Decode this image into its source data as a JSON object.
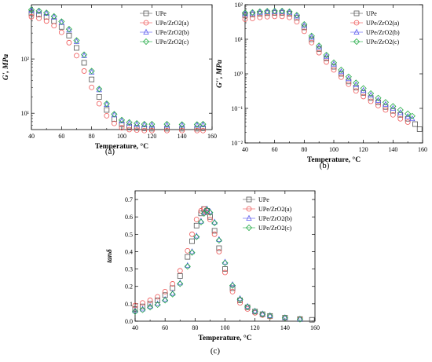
{
  "series_colors": [
    "#555555",
    "#ee5555",
    "#5555ee",
    "#22aa44"
  ],
  "chart_data": [
    {
      "type": "scatter",
      "panel_label": "(a)",
      "xlabel": "Temperature, °C",
      "ylabel": "G', MPa",
      "xlim": [
        40,
        160
      ],
      "ylim": [
        5,
        1000
      ],
      "yscale": "log",
      "grid": false,
      "legend_position": "top-right",
      "xticks": [
        "40",
        "60",
        "80",
        "100",
        "120",
        "140",
        "160"
      ],
      "yticks": [
        {
          "v": 10,
          "label": "10¹"
        },
        {
          "v": 100,
          "label": "10²"
        }
      ],
      "series": [
        {
          "name": "UPe",
          "x": [
            40,
            45,
            50,
            55,
            60,
            65,
            70,
            75,
            80,
            85,
            90,
            95,
            100,
            105,
            110,
            115,
            120,
            130,
            140,
            150,
            154
          ],
          "y": [
            700,
            660,
            600,
            500,
            390,
            270,
            160,
            85,
            42,
            20,
            11.5,
            7.8,
            6.3,
            5.7,
            5.4,
            5.3,
            5.2,
            5.2,
            5.2,
            5.2,
            5.3
          ]
        },
        {
          "name": "UPe/ZrO2(a)",
          "x": [
            40,
            45,
            50,
            55,
            60,
            65,
            70,
            75,
            80,
            85,
            90,
            95,
            100,
            105,
            110,
            115,
            120,
            130,
            140,
            150,
            154
          ],
          "y": [
            600,
            560,
            500,
            410,
            310,
            200,
            115,
            60,
            30,
            15,
            9,
            6.5,
            5.4,
            5.0,
            4.9,
            4.8,
            4.8,
            4.8,
            4.8,
            4.8,
            4.8
          ]
        },
        {
          "name": "UPe/ZrO2(b)",
          "x": [
            40,
            45,
            50,
            55,
            60,
            65,
            70,
            75,
            80,
            85,
            90,
            95,
            100,
            105,
            110,
            115,
            120,
            130,
            140,
            150,
            154
          ],
          "y": [
            790,
            750,
            690,
            590,
            470,
            340,
            210,
            115,
            57,
            27,
            14.5,
            9.3,
            7.2,
            6.5,
            6.2,
            6.1,
            6.0,
            6.0,
            6.0,
            6.0,
            6.1
          ]
        },
        {
          "name": "UPe/ZrO2(c)",
          "x": [
            40,
            45,
            50,
            55,
            60,
            65,
            70,
            75,
            80,
            85,
            90,
            95,
            100,
            105,
            110,
            115,
            120,
            130,
            140,
            150,
            154
          ],
          "y": [
            810,
            770,
            710,
            610,
            490,
            355,
            220,
            120,
            60,
            28,
            15,
            9.6,
            7.5,
            6.8,
            6.5,
            6.3,
            6.3,
            6.3,
            6.2,
            6.2,
            6.3
          ]
        }
      ]
    },
    {
      "type": "scatter",
      "panel_label": "(b)",
      "xlabel": "Temperature, °C",
      "ylabel": "G'', MPa",
      "xlim": [
        40,
        160
      ],
      "ylim": [
        0.01,
        100
      ],
      "yscale": "log",
      "grid": false,
      "legend_position": "top-right",
      "xticks": [
        "40",
        "60",
        "80",
        "100",
        "120",
        "140",
        "160"
      ],
      "yticks": [
        {
          "v": 0.01,
          "label": "10⁻²"
        },
        {
          "v": 0.1,
          "label": "10⁻¹"
        },
        {
          "v": 1,
          "label": "10⁰"
        },
        {
          "v": 10,
          "label": "10¹"
        },
        {
          "v": 100,
          "label": "10²"
        }
      ],
      "series": [
        {
          "name": "UPe",
          "x": [
            40,
            45,
            50,
            55,
            60,
            65,
            70,
            75,
            80,
            85,
            90,
            95,
            100,
            105,
            110,
            115,
            120,
            125,
            130,
            135,
            140,
            145,
            150,
            155,
            158
          ],
          "y": [
            50,
            52,
            55,
            57,
            58,
            58,
            55,
            42,
            22,
            10,
            5.2,
            2.8,
            1.6,
            1.0,
            0.6,
            0.4,
            0.28,
            0.2,
            0.15,
            0.11,
            0.085,
            0.065,
            0.05,
            0.035,
            0.025
          ]
        },
        {
          "name": "UPe/ZrO2(a)",
          "x": [
            40,
            45,
            50,
            55,
            60,
            65,
            70,
            75,
            80,
            85,
            90,
            95,
            100,
            105,
            110,
            115,
            120,
            125,
            130,
            135,
            140,
            145,
            150
          ],
          "y": [
            38,
            40,
            43,
            45,
            46,
            46,
            43,
            32,
            17,
            8,
            4.1,
            2.2,
            1.3,
            0.8,
            0.5,
            0.32,
            0.22,
            0.16,
            0.12,
            0.09,
            0.065,
            0.05,
            0.04
          ]
        },
        {
          "name": "UPe/ZrO2(b)",
          "x": [
            40,
            45,
            50,
            55,
            60,
            65,
            70,
            75,
            80,
            85,
            90,
            95,
            100,
            105,
            110,
            115,
            120,
            125,
            130,
            135,
            140,
            145,
            150,
            153
          ],
          "y": [
            55,
            57,
            60,
            62,
            63,
            63,
            60,
            47,
            25,
            11.5,
            6,
            3.2,
            1.9,
            1.15,
            0.72,
            0.48,
            0.33,
            0.24,
            0.17,
            0.13,
            0.1,
            0.075,
            0.058,
            0.05
          ]
        },
        {
          "name": "UPe/ZrO2(c)",
          "x": [
            40,
            45,
            50,
            55,
            60,
            65,
            70,
            75,
            80,
            85,
            90,
            95,
            100,
            105,
            110,
            115,
            120,
            125,
            130,
            135,
            140,
            145,
            150,
            153
          ],
          "y": [
            58,
            60,
            63,
            65,
            66,
            66,
            63,
            50,
            27,
            12.5,
            6.5,
            3.5,
            2.1,
            1.3,
            0.82,
            0.55,
            0.38,
            0.27,
            0.2,
            0.15,
            0.115,
            0.09,
            0.07,
            0.06
          ]
        }
      ]
    },
    {
      "type": "scatter",
      "panel_label": "(c)",
      "xlabel": "Temperature, °C",
      "ylabel": "tanδ",
      "xlim": [
        40,
        160
      ],
      "ylim": [
        0,
        0.75
      ],
      "yscale": "linear",
      "grid": false,
      "legend_position": "top-right",
      "xticks": [
        "40",
        "60",
        "80",
        "100",
        "120",
        "140",
        "160"
      ],
      "yticks": [
        {
          "v": 0.0,
          "label": "0.0"
        },
        {
          "v": 0.1,
          "label": "0.1"
        },
        {
          "v": 0.2,
          "label": "0.2"
        },
        {
          "v": 0.3,
          "label": "0.3"
        },
        {
          "v": 0.4,
          "label": "0.4"
        },
        {
          "v": 0.5,
          "label": "0.5"
        },
        {
          "v": 0.6,
          "label": "0.6"
        },
        {
          "v": 0.7,
          "label": "0.7"
        }
      ],
      "series": [
        {
          "name": "UPe",
          "x": [
            40,
            45,
            50,
            55,
            60,
            65,
            70,
            75,
            78,
            81,
            84,
            86,
            88,
            90,
            93,
            96,
            100,
            105,
            110,
            115,
            120,
            125,
            130,
            140,
            150,
            158
          ],
          "y": [
            0.07,
            0.085,
            0.1,
            0.12,
            0.15,
            0.19,
            0.26,
            0.37,
            0.46,
            0.55,
            0.62,
            0.645,
            0.635,
            0.6,
            0.52,
            0.42,
            0.3,
            0.19,
            0.12,
            0.08,
            0.055,
            0.04,
            0.03,
            0.02,
            0.012,
            0.008
          ]
        },
        {
          "name": "UPe/ZrO2(a)",
          "x": [
            40,
            45,
            50,
            55,
            60,
            65,
            70,
            75,
            78,
            81,
            84,
            86,
            88,
            90,
            93,
            96,
            100,
            105,
            110,
            115,
            120,
            125,
            130,
            140,
            150
          ],
          "y": [
            0.09,
            0.105,
            0.12,
            0.14,
            0.17,
            0.215,
            0.29,
            0.405,
            0.5,
            0.585,
            0.635,
            0.645,
            0.625,
            0.585,
            0.5,
            0.4,
            0.28,
            0.17,
            0.105,
            0.07,
            0.048,
            0.035,
            0.026,
            0.018,
            0.012
          ]
        },
        {
          "name": "UPe/ZrO2(b)",
          "x": [
            40,
            45,
            50,
            55,
            60,
            65,
            70,
            75,
            78,
            81,
            84,
            86,
            88,
            90,
            93,
            96,
            100,
            105,
            110,
            115,
            120,
            125,
            130,
            140,
            150
          ],
          "y": [
            0.06,
            0.07,
            0.085,
            0.1,
            0.125,
            0.16,
            0.22,
            0.32,
            0.4,
            0.49,
            0.575,
            0.625,
            0.645,
            0.63,
            0.57,
            0.47,
            0.34,
            0.21,
            0.13,
            0.085,
            0.058,
            0.042,
            0.032,
            0.02,
            0.012
          ]
        },
        {
          "name": "UPe/ZrO2(c)",
          "x": [
            40,
            45,
            50,
            55,
            60,
            65,
            70,
            75,
            78,
            81,
            84,
            86,
            88,
            90,
            93,
            96,
            100,
            105,
            110,
            115,
            120,
            125,
            130,
            140,
            150
          ],
          "y": [
            0.055,
            0.065,
            0.08,
            0.095,
            0.12,
            0.155,
            0.215,
            0.315,
            0.395,
            0.485,
            0.57,
            0.62,
            0.64,
            0.625,
            0.565,
            0.465,
            0.335,
            0.205,
            0.125,
            0.082,
            0.056,
            0.04,
            0.03,
            0.019,
            0.011
          ]
        }
      ]
    }
  ]
}
